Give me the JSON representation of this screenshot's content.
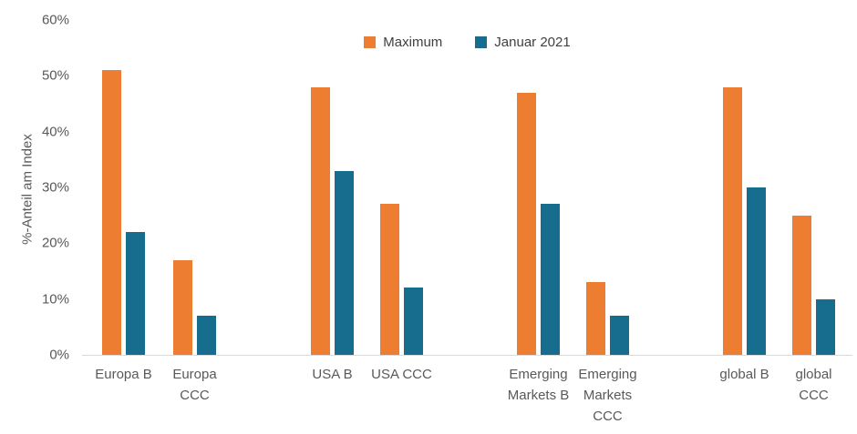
{
  "chart_data": {
    "type": "bar",
    "title": "",
    "xlabel": "",
    "ylabel": "%-Anteil am Index",
    "ylim": [
      0,
      60
    ],
    "yticks": [
      0,
      10,
      20,
      30,
      40,
      50,
      60
    ],
    "ytick_labels": [
      "0%",
      "10%",
      "20%",
      "30%",
      "40%",
      "50%",
      "60%"
    ],
    "grid": false,
    "legend_position": "top-center",
    "categories": [
      "Europa B",
      "Europa CCC",
      "USA B",
      "USA CCC",
      "Emerging Markets B",
      "Emerging Markets CCC",
      "global B",
      "global CCC"
    ],
    "xtick_label_lines": [
      [
        "Europa B"
      ],
      [
        "Europa",
        "CCC"
      ],
      [
        "USA B"
      ],
      [
        "USA CCC"
      ],
      [
        "Emerging",
        "Markets B"
      ],
      [
        "Emerging",
        "Markets",
        "CCC"
      ],
      [
        "global B"
      ],
      [
        "global",
        "CCC"
      ]
    ],
    "series": [
      {
        "name": "Maximum",
        "color": "#ED7D31",
        "values": [
          51,
          17,
          48,
          27,
          47,
          13,
          48,
          25
        ]
      },
      {
        "name": "Januar 2021",
        "color": "#176D8D",
        "values": [
          22,
          7,
          33,
          12,
          27,
          7,
          30,
          10
        ]
      }
    ],
    "colors": {
      "axis_line": "#D9D9D9",
      "text": "#595959"
    }
  }
}
